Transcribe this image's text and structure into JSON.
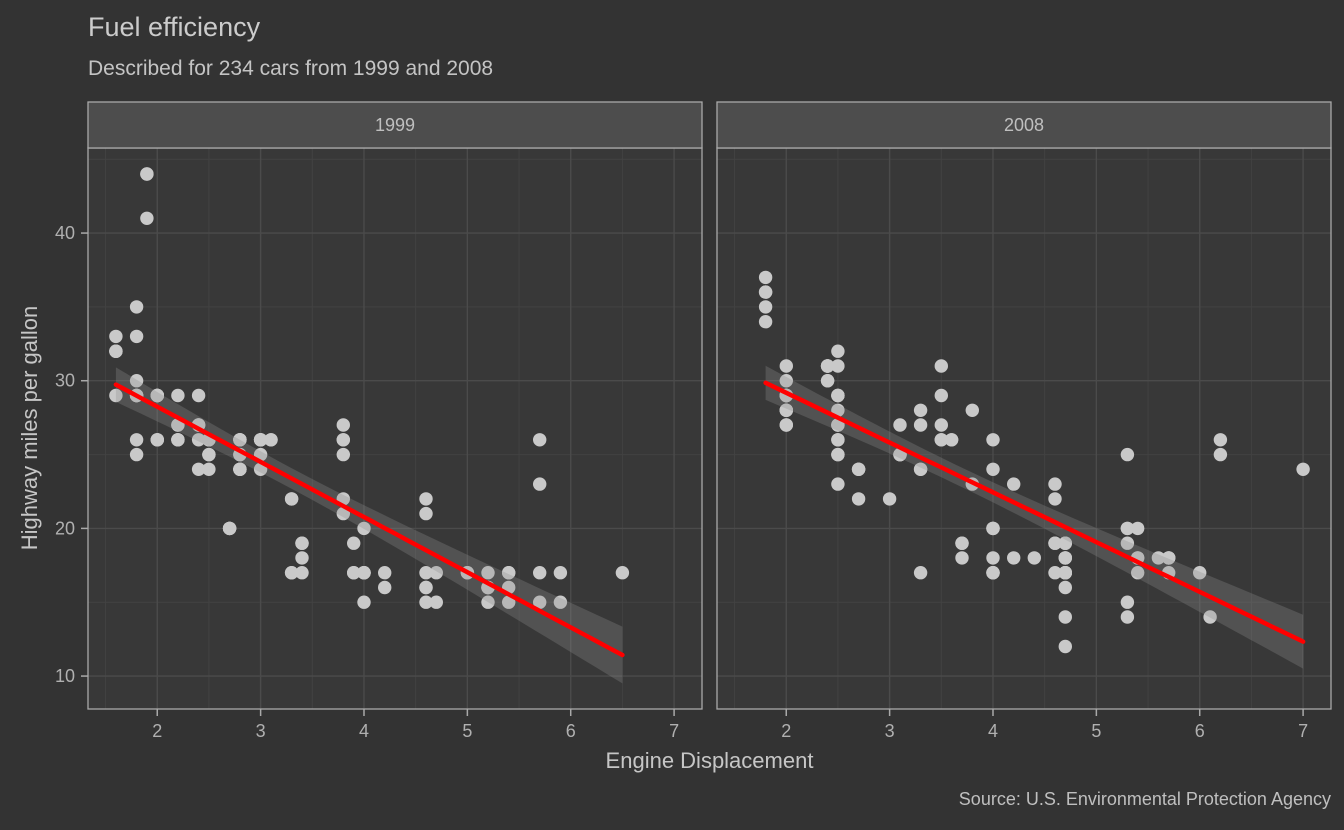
{
  "header": {
    "title": "Fuel efficiency",
    "subtitle": "Described for 234 cars from 1999 and 2008"
  },
  "caption": "Source: U.S. Environmental Protection Agency",
  "colors": {
    "background": "#333333",
    "panel_background": "#383838",
    "grid_major": "#4b4b4b",
    "grid_minor": "#424242",
    "panel_border": "#a9a9a9",
    "strip_background": "#4d4d4d",
    "strip_text": "#bfbfbf",
    "tick_text": "#b0b0b0",
    "tick_mark": "#a9a9a9",
    "point": "#c9c9c9",
    "smooth_line": "#ff0000",
    "ribbon": "#909090",
    "title_text": "#cccccc",
    "subtitle_text": "#c4c4c4",
    "axis_title_text": "#c6c6c6",
    "caption_text": "#bfbfbf"
  },
  "chart_data": {
    "type": "scatter",
    "title": "Fuel efficiency",
    "subtitle": "Described for 234 cars from 1999 and 2008",
    "xlabel": "Engine Displacement",
    "ylabel": "Highway miles per gallon",
    "facet_variable": "year",
    "grid": true,
    "legend": "none",
    "smooth": {
      "method": "linear",
      "confidence_interval": true
    },
    "x_domain": [
      1.33,
      7.27
    ],
    "y_domain": [
      7.77,
      45.76
    ],
    "x_ticks": [
      2,
      3,
      4,
      5,
      6,
      7
    ],
    "y_ticks": [
      10,
      20,
      30,
      40
    ],
    "x_minor_ticks": [
      1.5,
      2.5,
      3.5,
      4.5,
      5.5,
      6.5
    ],
    "y_minor_ticks": [
      15,
      25,
      35,
      45
    ],
    "panels": [
      {
        "label": "1999",
        "points": [
          [
            1.8,
            29
          ],
          [
            1.8,
            29
          ],
          [
            2.8,
            26
          ],
          [
            2.8,
            26
          ],
          [
            1.8,
            26
          ],
          [
            1.8,
            25
          ],
          [
            2.8,
            25
          ],
          [
            2.8,
            25
          ],
          [
            2.8,
            24
          ],
          [
            5.7,
            17
          ],
          [
            5.7,
            26
          ],
          [
            5.7,
            23
          ],
          [
            5.7,
            15
          ],
          [
            6.5,
            17
          ],
          [
            2.4,
            27
          ],
          [
            3.1,
            26
          ],
          [
            2.4,
            24
          ],
          [
            3.0,
            24
          ],
          [
            3.3,
            22
          ],
          [
            3.3,
            22
          ],
          [
            3.8,
            22
          ],
          [
            3.8,
            21
          ],
          [
            3.9,
            19
          ],
          [
            3.9,
            17
          ],
          [
            5.2,
            17
          ],
          [
            5.2,
            15
          ],
          [
            3.9,
            17
          ],
          [
            5.2,
            16
          ],
          [
            5.9,
            15
          ],
          [
            5.2,
            16
          ],
          [
            5.2,
            16
          ],
          [
            5.9,
            17
          ],
          [
            4.6,
            17
          ],
          [
            5.4,
            17
          ],
          [
            4.0,
            17
          ],
          [
            4.0,
            17
          ],
          [
            4.0,
            17
          ],
          [
            5.0,
            17
          ],
          [
            4.2,
            17
          ],
          [
            4.2,
            16
          ],
          [
            4.6,
            16
          ],
          [
            4.6,
            16
          ],
          [
            5.4,
            15
          ],
          [
            3.8,
            26
          ],
          [
            3.8,
            25
          ],
          [
            4.6,
            21
          ],
          [
            4.6,
            22
          ],
          [
            1.6,
            33
          ],
          [
            1.6,
            32
          ],
          [
            1.6,
            32
          ],
          [
            1.6,
            29
          ],
          [
            1.6,
            32
          ],
          [
            2.4,
            26
          ],
          [
            2.4,
            27
          ],
          [
            2.5,
            26
          ],
          [
            2.5,
            26
          ],
          [
            2.0,
            26
          ],
          [
            2.0,
            29
          ],
          [
            4.0,
            20
          ],
          [
            4.7,
            17
          ],
          [
            4.0,
            15
          ],
          [
            4.6,
            15
          ],
          [
            5.4,
            17
          ],
          [
            5.4,
            16
          ],
          [
            4.0,
            17
          ],
          [
            5.0,
            17
          ],
          [
            2.4,
            29
          ],
          [
            2.4,
            27
          ],
          [
            3.0,
            26
          ],
          [
            3.0,
            25
          ],
          [
            3.3,
            17
          ],
          [
            3.3,
            17
          ],
          [
            3.1,
            26
          ],
          [
            3.8,
            27
          ],
          [
            3.8,
            26
          ],
          [
            2.5,
            25
          ],
          [
            2.5,
            24
          ],
          [
            2.2,
            29
          ],
          [
            2.2,
            26
          ],
          [
            2.5,
            25
          ],
          [
            2.5,
            26
          ],
          [
            2.7,
            20
          ],
          [
            2.7,
            20
          ],
          [
            3.4,
            19
          ],
          [
            3.4,
            17
          ],
          [
            2.2,
            26
          ],
          [
            2.2,
            27
          ],
          [
            3.0,
            26
          ],
          [
            3.0,
            26
          ],
          [
            2.2,
            26
          ],
          [
            2.2,
            27
          ],
          [
            3.0,
            26
          ],
          [
            3.0,
            26
          ],
          [
            1.8,
            30
          ],
          [
            1.8,
            33
          ],
          [
            1.8,
            35
          ],
          [
            4.7,
            15
          ],
          [
            2.7,
            20
          ],
          [
            2.7,
            20
          ],
          [
            3.4,
            19
          ],
          [
            3.4,
            18
          ],
          [
            2.0,
            29
          ],
          [
            2.0,
            29
          ],
          [
            2.8,
            24
          ],
          [
            1.9,
            44
          ],
          [
            2.0,
            29
          ],
          [
            2.0,
            26
          ],
          [
            2.8,
            24
          ],
          [
            2.8,
            24
          ],
          [
            1.9,
            44
          ],
          [
            1.9,
            41
          ],
          [
            2.0,
            29
          ],
          [
            2.0,
            26
          ],
          [
            1.8,
            29
          ],
          [
            1.8,
            29
          ],
          [
            2.8,
            26
          ],
          [
            2.8,
            26
          ]
        ]
      },
      {
        "label": "2008",
        "points": [
          [
            2.0,
            31
          ],
          [
            2.0,
            30
          ],
          [
            3.1,
            27
          ],
          [
            2.0,
            28
          ],
          [
            2.0,
            27
          ],
          [
            3.1,
            25
          ],
          [
            3.1,
            25
          ],
          [
            3.1,
            25
          ],
          [
            4.2,
            23
          ],
          [
            5.3,
            20
          ],
          [
            5.3,
            15
          ],
          [
            5.3,
            20
          ],
          [
            6.0,
            17
          ],
          [
            6.2,
            26
          ],
          [
            6.2,
            25
          ],
          [
            7.0,
            24
          ],
          [
            5.3,
            19
          ],
          [
            5.3,
            14
          ],
          [
            2.4,
            30
          ],
          [
            3.5,
            29
          ],
          [
            3.6,
            26
          ],
          [
            3.3,
            24
          ],
          [
            3.3,
            24
          ],
          [
            3.3,
            17
          ],
          [
            3.8,
            23
          ],
          [
            4.0,
            17
          ],
          [
            3.7,
            19
          ],
          [
            3.7,
            18
          ],
          [
            4.7,
            19
          ],
          [
            4.7,
            16
          ],
          [
            4.7,
            12
          ],
          [
            4.7,
            17
          ],
          [
            4.7,
            17
          ],
          [
            4.7,
            18
          ],
          [
            5.7,
            18
          ],
          [
            4.7,
            17
          ],
          [
            4.7,
            19
          ],
          [
            4.7,
            18
          ],
          [
            4.7,
            17
          ],
          [
            4.7,
            18
          ],
          [
            4.7,
            17
          ],
          [
            5.7,
            17
          ],
          [
            5.4,
            18
          ],
          [
            4.0,
            17
          ],
          [
            4.6,
            19
          ],
          [
            4.6,
            17
          ],
          [
            5.4,
            17
          ],
          [
            4.0,
            26
          ],
          [
            4.0,
            24
          ],
          [
            4.6,
            23
          ],
          [
            4.6,
            22
          ],
          [
            5.4,
            20
          ],
          [
            1.8,
            34
          ],
          [
            1.8,
            36
          ],
          [
            1.8,
            36
          ],
          [
            2.0,
            29
          ],
          [
            2.4,
            30
          ],
          [
            2.4,
            31
          ],
          [
            3.3,
            28
          ],
          [
            2.0,
            28
          ],
          [
            2.0,
            27
          ],
          [
            2.7,
            24
          ],
          [
            2.7,
            24
          ],
          [
            2.7,
            24
          ],
          [
            3.0,
            22
          ],
          [
            3.7,
            19
          ],
          [
            4.7,
            19
          ],
          [
            4.7,
            14
          ],
          [
            5.7,
            18
          ],
          [
            6.1,
            14
          ],
          [
            4.2,
            18
          ],
          [
            4.4,
            18
          ],
          [
            5.4,
            18
          ],
          [
            4.0,
            17
          ],
          [
            4.6,
            19
          ],
          [
            2.5,
            31
          ],
          [
            2.5,
            32
          ],
          [
            3.5,
            27
          ],
          [
            3.5,
            26
          ],
          [
            3.5,
            26
          ],
          [
            4.0,
            20
          ],
          [
            5.6,
            18
          ],
          [
            3.8,
            28
          ],
          [
            5.3,
            25
          ],
          [
            2.5,
            27
          ],
          [
            2.5,
            25
          ],
          [
            2.5,
            26
          ],
          [
            2.5,
            23
          ],
          [
            2.5,
            27
          ],
          [
            2.5,
            25
          ],
          [
            2.5,
            27
          ],
          [
            2.5,
            26
          ],
          [
            4.0,
            20
          ],
          [
            4.7,
            17
          ],
          [
            2.4,
            31
          ],
          [
            2.4,
            31
          ],
          [
            3.5,
            31
          ],
          [
            2.4,
            31
          ],
          [
            2.4,
            31
          ],
          [
            3.3,
            27
          ],
          [
            1.8,
            35
          ],
          [
            1.8,
            37
          ],
          [
            5.7,
            18
          ],
          [
            2.7,
            22
          ],
          [
            4.0,
            20
          ],
          [
            4.0,
            18
          ],
          [
            2.0,
            28
          ],
          [
            2.0,
            29
          ],
          [
            2.0,
            29
          ],
          [
            2.0,
            29
          ],
          [
            2.5,
            29
          ],
          [
            2.5,
            29
          ],
          [
            2.5,
            28
          ],
          [
            2.5,
            29
          ],
          [
            2.0,
            28
          ],
          [
            2.0,
            29
          ],
          [
            3.6,
            26
          ]
        ]
      }
    ]
  }
}
